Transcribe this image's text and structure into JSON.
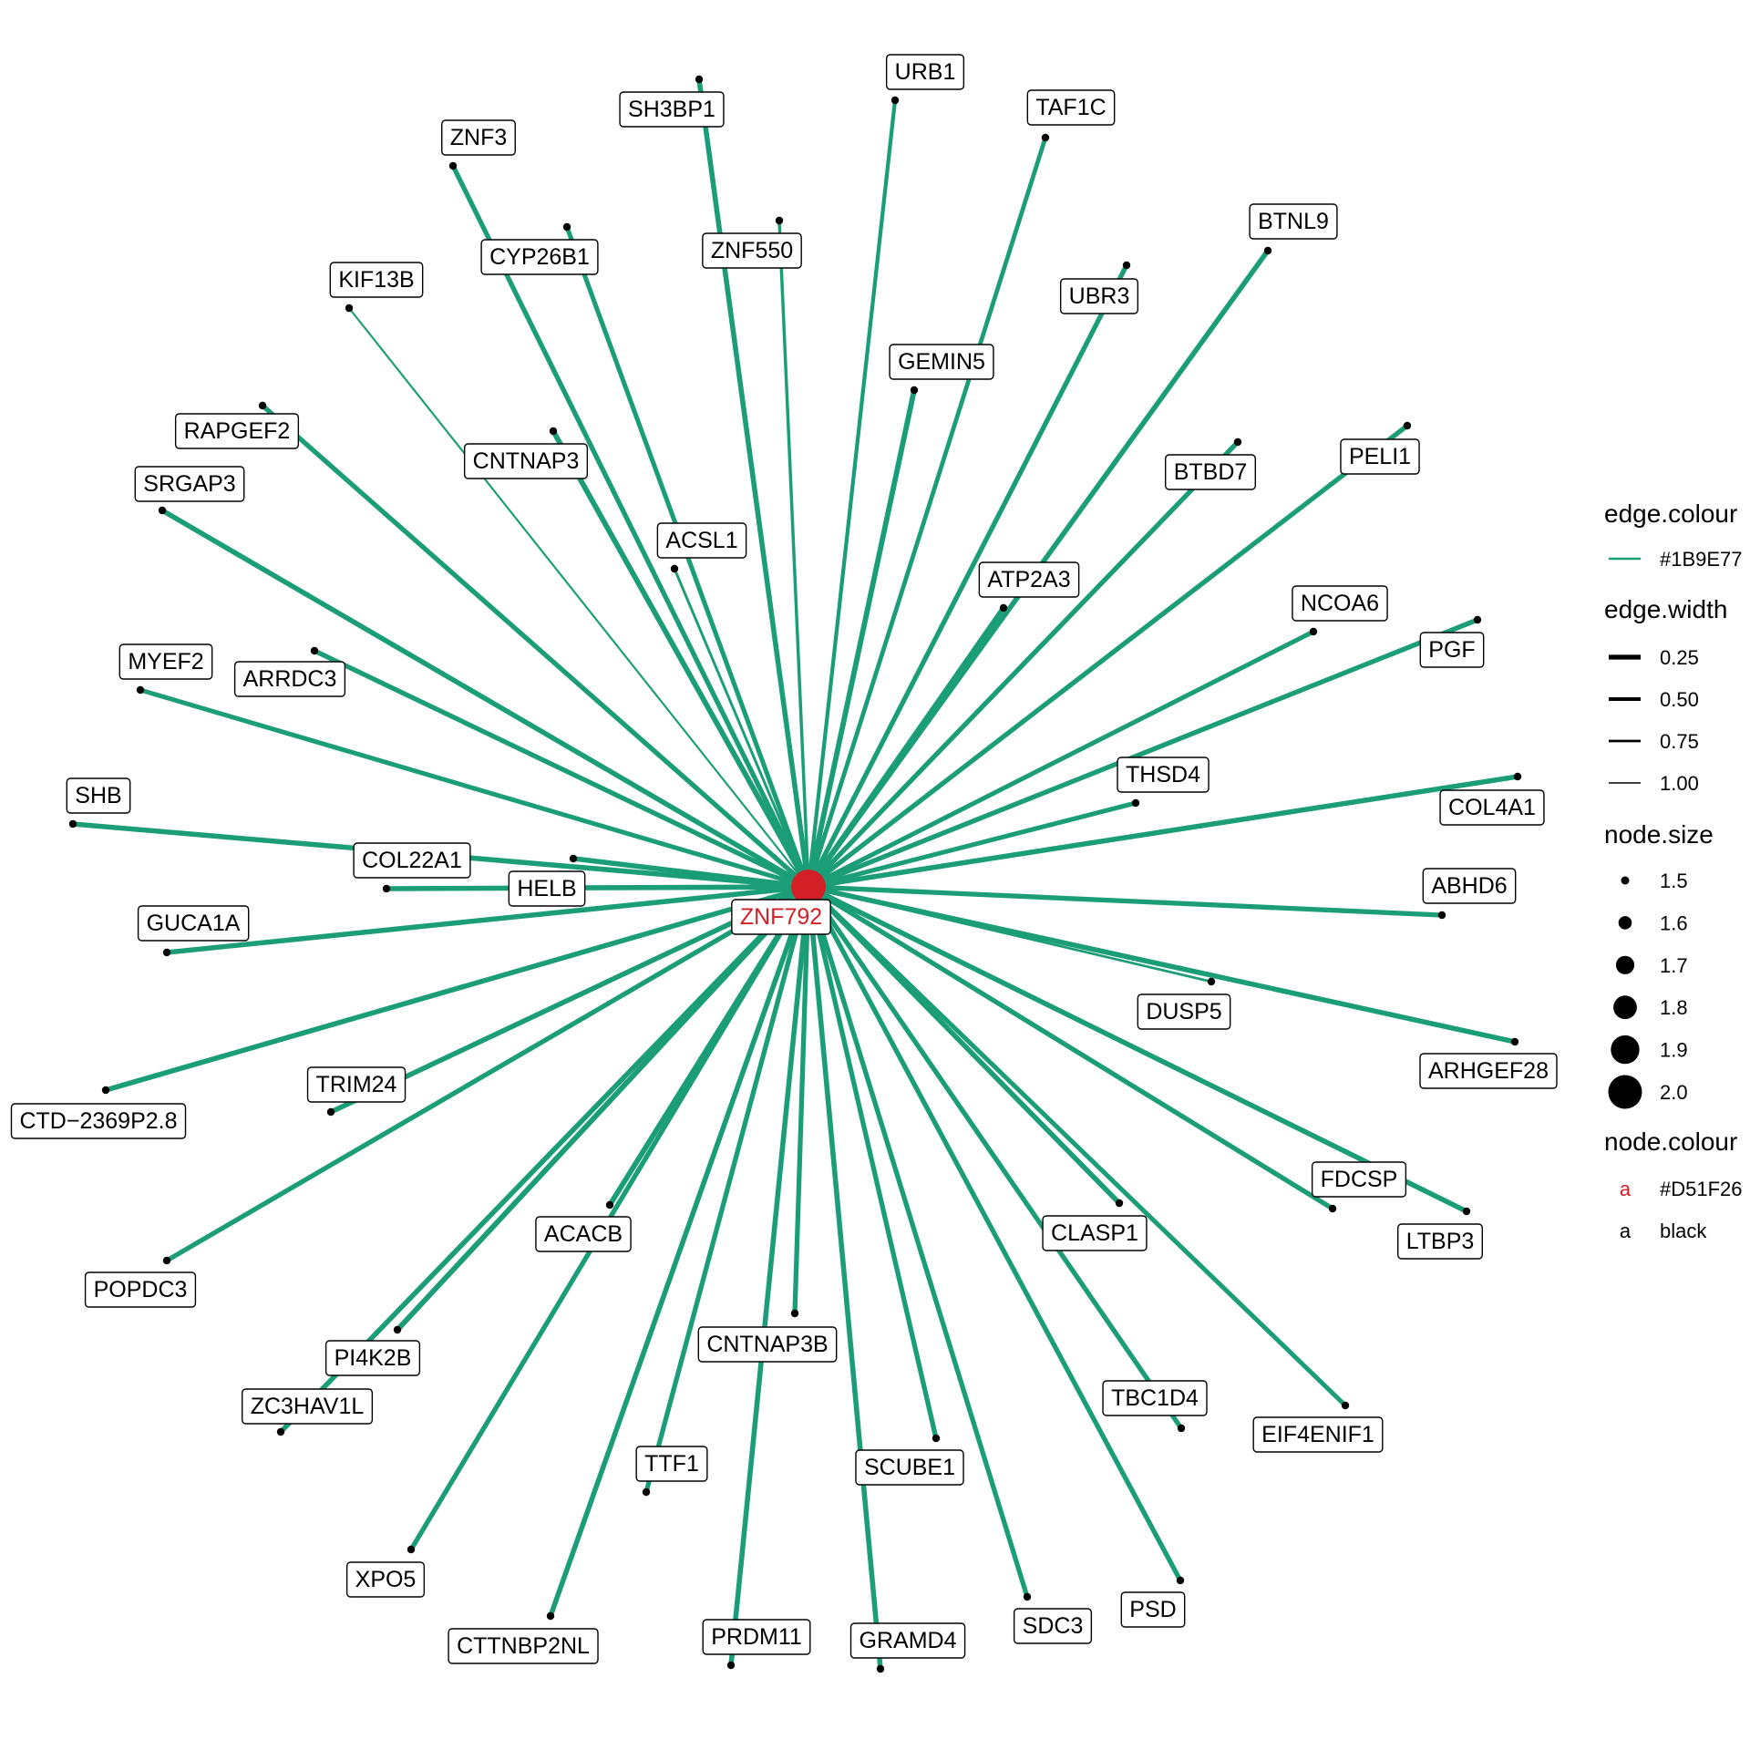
{
  "colors": {
    "edge": "#1B9E77",
    "hub": "#D51F26",
    "node": "#000000"
  },
  "hub": {
    "name": "ZNF792"
  },
  "nodes": [
    {
      "name": "URB1",
      "width": 0.45
    },
    {
      "name": "TAF1C",
      "width": 0.35
    },
    {
      "name": "SH3BP1",
      "width": 0.2
    },
    {
      "name": "ZNF3",
      "width": 0.25
    },
    {
      "name": "CYP26B1",
      "width": 0.3
    },
    {
      "name": "ZNF550",
      "width": 0.6
    },
    {
      "name": "BTNL9",
      "width": 0.2
    },
    {
      "name": "KIF13B",
      "width": 0.85
    },
    {
      "name": "UBR3",
      "width": 0.25
    },
    {
      "name": "GEMIN5",
      "width": 0.15
    },
    {
      "name": "RAPGEF2",
      "width": 0.25
    },
    {
      "name": "CNTNAP3",
      "width": 0.15
    },
    {
      "name": "BTBD7",
      "width": 0.25
    },
    {
      "name": "PELI1",
      "width": 0.25
    },
    {
      "name": "SRGAP3",
      "width": 0.2
    },
    {
      "name": "ACSL1",
      "width": 0.7
    },
    {
      "name": "ATP2A3",
      "width": 0.2
    },
    {
      "name": "NCOA6",
      "width": 0.3
    },
    {
      "name": "PGF",
      "width": 0.25
    },
    {
      "name": "MYEF2",
      "width": 0.3
    },
    {
      "name": "ARRDC3",
      "width": 0.25
    },
    {
      "name": "THSD4",
      "width": 0.3
    },
    {
      "name": "SHB",
      "width": 0.2
    },
    {
      "name": "COL4A1",
      "width": 0.2
    },
    {
      "name": "COL22A1",
      "width": 0.2
    },
    {
      "name": "HELB",
      "width": 0.2
    },
    {
      "name": "ABHD6",
      "width": 0.25
    },
    {
      "name": "GUCA1A",
      "width": 0.2
    },
    {
      "name": "DUSP5",
      "width": 0.75
    },
    {
      "name": "ARHGEF28",
      "width": 0.2
    },
    {
      "name": "CTD−2369P2.8",
      "width": 0.2
    },
    {
      "name": "TRIM24",
      "width": 0.2
    },
    {
      "name": "FDCSP",
      "width": 0.25
    },
    {
      "name": "LTBP3",
      "width": 0.2
    },
    {
      "name": "POPDC3",
      "width": 0.25
    },
    {
      "name": "ACACB",
      "width": 0.15
    },
    {
      "name": "CLASP1",
      "width": 0.2
    },
    {
      "name": "PI4K2B",
      "width": 0.15
    },
    {
      "name": "CNTNAP3B",
      "width": 0.25
    },
    {
      "name": "ZC3HAV1L",
      "width": 0.2
    },
    {
      "name": "TBC1D4",
      "width": 0.25
    },
    {
      "name": "EIF4ENIF1",
      "width": 0.3
    },
    {
      "name": "TTF1",
      "width": 0.25
    },
    {
      "name": "SCUBE1",
      "width": 0.25
    },
    {
      "name": "XPO5",
      "width": 0.25
    },
    {
      "name": "PSD",
      "width": 0.25
    },
    {
      "name": "SDC3",
      "width": 0.25
    },
    {
      "name": "CTTNBP2NL",
      "width": 0.2
    },
    {
      "name": "PRDM11",
      "width": 0.2
    },
    {
      "name": "GRAMD4",
      "width": 0.2
    }
  ],
  "legend": {
    "edge_colour": {
      "title": "edge.colour",
      "entries": [
        "#1B9E77"
      ]
    },
    "edge_width": {
      "title": "edge.width",
      "entries": [
        "0.25",
        "0.50",
        "0.75",
        "1.00"
      ],
      "values": [
        0.25,
        0.5,
        0.75,
        1.0
      ]
    },
    "node_size": {
      "title": "node.size",
      "entries": [
        "1.5",
        "1.6",
        "1.7",
        "1.8",
        "1.9",
        "2.0"
      ],
      "values": [
        1.5,
        1.6,
        1.7,
        1.8,
        1.9,
        2.0
      ]
    },
    "node_colour": {
      "title": "node.colour",
      "key_glyph": "a",
      "entries": [
        {
          "label": "#D51F26",
          "color": "#D51F26"
        },
        {
          "label": "black",
          "color": "#000000"
        }
      ]
    }
  }
}
